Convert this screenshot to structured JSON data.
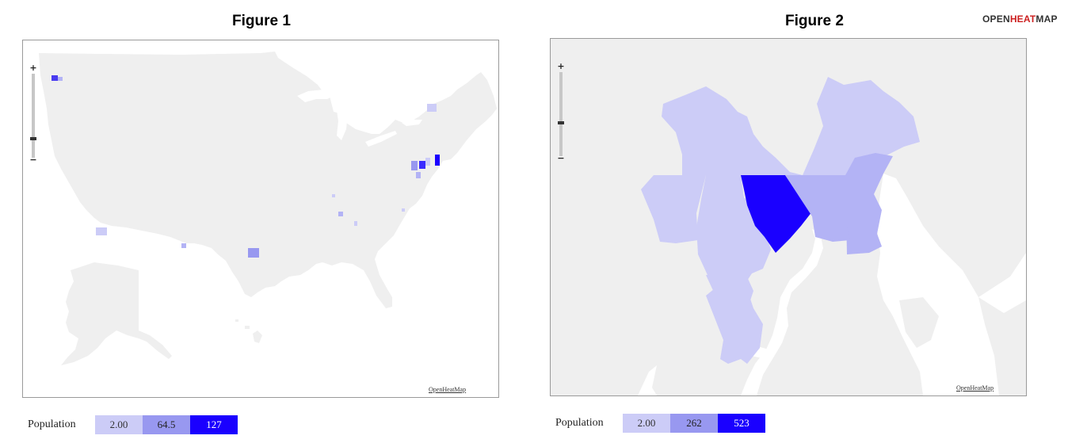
{
  "figures": [
    {
      "title": "Figure 1",
      "credit": "OpenHeatMap",
      "legend": {
        "title": "Population",
        "stops": [
          {
            "label": "2.00",
            "color": "#ccccf7",
            "text": "#333333"
          },
          {
            "label": "64.5",
            "color": "#9898f0",
            "text": "#222222"
          },
          {
            "label": "127",
            "color": "#1a00ff",
            "text": "#ffffff"
          }
        ]
      },
      "zoom": {
        "plus": "+",
        "minus": "−"
      }
    },
    {
      "title": "Figure 2",
      "credit": "OpenHeatMap",
      "legend": {
        "title": "Population",
        "stops": [
          {
            "label": "2.00",
            "color": "#ccccf7",
            "text": "#333333"
          },
          {
            "label": "262",
            "color": "#9898f0",
            "text": "#222222"
          },
          {
            "label": "523",
            "color": "#1a00ff",
            "text": "#ffffff"
          }
        ]
      },
      "zoom": {
        "plus": "+",
        "minus": "−"
      }
    }
  ],
  "brand": {
    "part1": "OPEN",
    "part2": "HEAT",
    "part3": "MAP"
  },
  "colors": {
    "land": "#efefef",
    "water": "#ffffff",
    "low": "#ccccf7",
    "mid": "#b3b3f5",
    "high": "#1a00ff"
  }
}
